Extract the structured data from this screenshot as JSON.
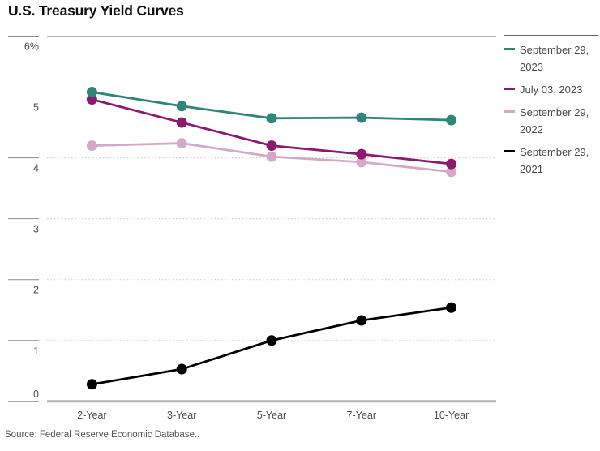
{
  "title": "U.S. Treasury Yield Curves",
  "source": "Source: Federal Reserve Economic Database..",
  "colors": {
    "teal": "#2d8677",
    "purple": "#8c1a6e",
    "pink": "#d4a9c8",
    "black": "#000000",
    "axis_text": "#4d4d4d",
    "grid_dotted": "#d0d0d0",
    "axis_line": "#b3b3b3",
    "tick_line": "#8a8a8a",
    "legend_rule": "#666666",
    "title_text": "#0d0d0d"
  },
  "chart_data": {
    "type": "line",
    "title": "U.S. Treasury Yield Curves",
    "categories": [
      "2-Year",
      "3-Year",
      "5-Year",
      "7-Year",
      "10-Year"
    ],
    "series": [
      {
        "name": "September 29, 2023",
        "color": "#2d8677",
        "values": [
          5.08,
          4.85,
          4.65,
          4.66,
          4.62
        ]
      },
      {
        "name": "July 03, 2023",
        "color": "#8c1a6e",
        "values": [
          4.96,
          4.58,
          4.2,
          4.06,
          3.9
        ]
      },
      {
        "name": "September 29, 2022",
        "color": "#d4a9c8",
        "values": [
          4.2,
          4.24,
          4.02,
          3.93,
          3.77
        ]
      },
      {
        "name": "September 29, 2021",
        "color": "#000000",
        "values": [
          0.28,
          0.53,
          1.0,
          1.33,
          1.54
        ]
      }
    ],
    "xlabel": "",
    "ylabel": "",
    "ylim": [
      0,
      6
    ],
    "y_ticks": [
      {
        "value": 0,
        "label": "0"
      },
      {
        "value": 1,
        "label": "1"
      },
      {
        "value": 2,
        "label": "2"
      },
      {
        "value": 3,
        "label": "3"
      },
      {
        "value": 4,
        "label": "4"
      },
      {
        "value": 5,
        "label": "5"
      },
      {
        "value": 6,
        "label": "6%"
      }
    ],
    "grid": "horizontal-dotted",
    "legend_position": "right"
  },
  "legend": {
    "items": [
      {
        "label": "September 29, 2023",
        "color": "#2d8677"
      },
      {
        "label": "July 03, 2023",
        "color": "#8c1a6e"
      },
      {
        "label": "September 29, 2022",
        "color": "#d4a9c8"
      },
      {
        "label": "September 29, 2021",
        "color": "#000000"
      }
    ]
  }
}
